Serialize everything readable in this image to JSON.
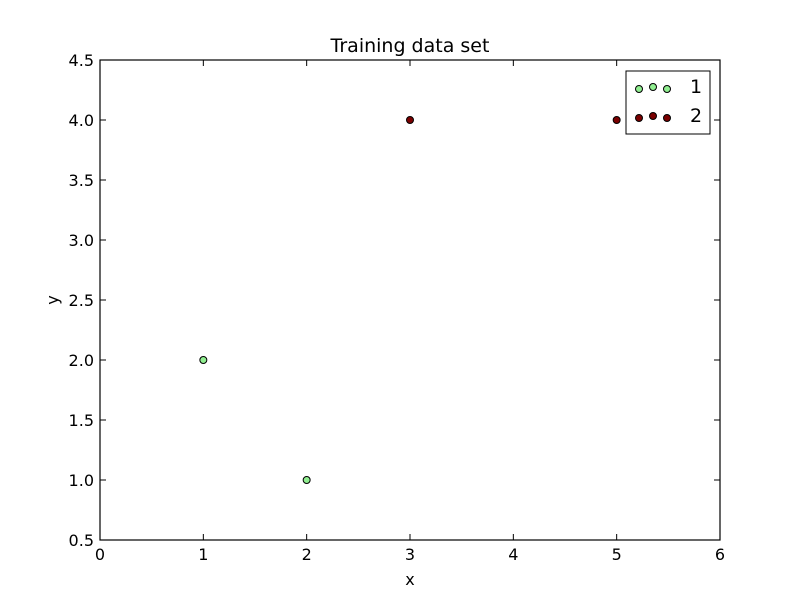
{
  "chart_data": {
    "type": "scatter",
    "title": "Training data set",
    "xlabel": "x",
    "ylabel": "y",
    "xlim": [
      0,
      6
    ],
    "ylim": [
      0.5,
      4.5
    ],
    "xticks": [
      "0",
      "1",
      "2",
      "3",
      "4",
      "5",
      "6"
    ],
    "yticks": [
      "0.5",
      "1.0",
      "1.5",
      "2.0",
      "2.5",
      "3.0",
      "3.5",
      "4.0",
      "4.5"
    ],
    "grid": false,
    "legend_position": "top-right",
    "series": [
      {
        "name": "1",
        "color": "#90ee90",
        "points": [
          [
            1,
            2
          ],
          [
            2,
            1
          ]
        ]
      },
      {
        "name": "2",
        "color": "#7a0000",
        "points": [
          [
            3,
            4
          ],
          [
            5,
            4
          ]
        ]
      }
    ]
  }
}
